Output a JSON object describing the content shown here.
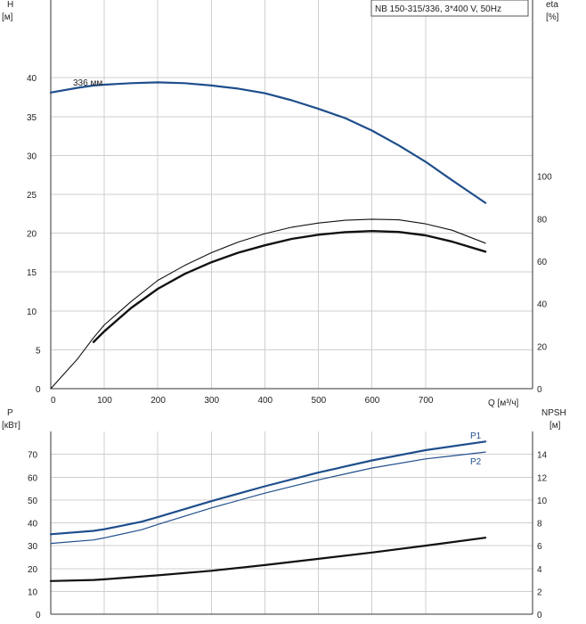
{
  "chart_data": [
    {
      "type": "line",
      "title": "NB 150-315/336, 3*400 V, 50Hz",
      "xlabel": "Q [м³/ч]",
      "ylabel_left": "H\n[м]",
      "ylabel_right": "eta\n[%]",
      "xlim": [
        0,
        900
      ],
      "ylim_left": [
        0,
        50
      ],
      "ylim_right": [
        0,
        183
      ],
      "x_ticks": [
        0,
        100,
        200,
        300,
        400,
        500,
        600,
        700
      ],
      "y_ticks_left": [
        0,
        5,
        10,
        15,
        20,
        25,
        30,
        35,
        40
      ],
      "y_ticks_right": [
        0,
        20,
        40,
        60,
        80,
        100
      ],
      "grid": true,
      "series": [
        {
          "name": "336 мм",
          "axis": "left",
          "color": "#1f4e8c",
          "width": 2.2,
          "x": [
            0,
            50,
            80,
            100,
            150,
            200,
            250,
            300,
            350,
            400,
            450,
            500,
            550,
            600,
            650,
            700,
            750,
            812
          ],
          "y": [
            38.1,
            38.7,
            39.0,
            39.1,
            39.3,
            39.4,
            39.3,
            39.0,
            38.6,
            38.0,
            37.1,
            36.0,
            34.8,
            33.2,
            31.3,
            29.2,
            26.8,
            23.9
          ]
        },
        {
          "axis": "right",
          "color": "#111111",
          "width": 1.1,
          "x": [
            0,
            50,
            80,
            100,
            150,
            200,
            250,
            300,
            350,
            400,
            450,
            500,
            550,
            600,
            650,
            700,
            750,
            812
          ],
          "y": [
            0,
            14,
            24,
            30,
            41,
            51,
            58,
            64,
            69,
            73,
            76,
            78,
            79.3,
            79.8,
            79.5,
            77.6,
            74.6,
            68.5
          ]
        },
        {
          "axis": "right",
          "color": "#111111",
          "width": 2.4,
          "x": [
            80,
            100,
            150,
            200,
            250,
            300,
            350,
            400,
            450,
            500,
            550,
            600,
            650,
            700,
            750,
            812
          ],
          "y": [
            22,
            27,
            38,
            47,
            54,
            59.5,
            64,
            67.5,
            70.5,
            72.5,
            73.7,
            74.2,
            73.8,
            72.2,
            69.2,
            64.5
          ]
        }
      ]
    },
    {
      "type": "line",
      "xlabel": "",
      "ylabel_left": "P\n[кВт]",
      "ylabel_right": "NPSH\n[м]",
      "xlim": [
        0,
        900
      ],
      "ylim_left": [
        0,
        80
      ],
      "ylim_right": [
        0,
        16
      ],
      "y_ticks_left": [
        0,
        10,
        20,
        30,
        40,
        50,
        60,
        70
      ],
      "y_ticks_right": [
        0,
        2,
        4,
        6,
        8,
        10,
        12,
        14
      ],
      "grid": true,
      "series": [
        {
          "name": "P1",
          "axis": "left",
          "color": "#1f4e8c",
          "width": 2.2,
          "x": [
            0,
            80,
            100,
            170,
            200,
            300,
            400,
            500,
            600,
            700,
            812
          ],
          "y": [
            35,
            36.5,
            37.2,
            40.5,
            42.5,
            49.5,
            56,
            62,
            67.3,
            71.8,
            75.6
          ]
        },
        {
          "name": "P2",
          "axis": "left",
          "color": "#1f4e8c",
          "width": 1.2,
          "x": [
            0,
            80,
            100,
            170,
            200,
            300,
            400,
            500,
            600,
            700,
            812
          ],
          "y": [
            31,
            32.5,
            33.4,
            37,
            39.3,
            46.5,
            53,
            58.8,
            64,
            68,
            71
          ]
        },
        {
          "axis": "right",
          "color": "#111111",
          "width": 2.2,
          "x": [
            0,
            80,
            100,
            200,
            300,
            400,
            500,
            600,
            700,
            812
          ],
          "y": [
            2.9,
            3.0,
            3.05,
            3.4,
            3.8,
            4.3,
            4.85,
            5.4,
            6.0,
            6.7
          ]
        }
      ]
    }
  ],
  "labels": {
    "curve_label": "336 мм",
    "p1_label": "P1",
    "p2_label": "P2"
  }
}
